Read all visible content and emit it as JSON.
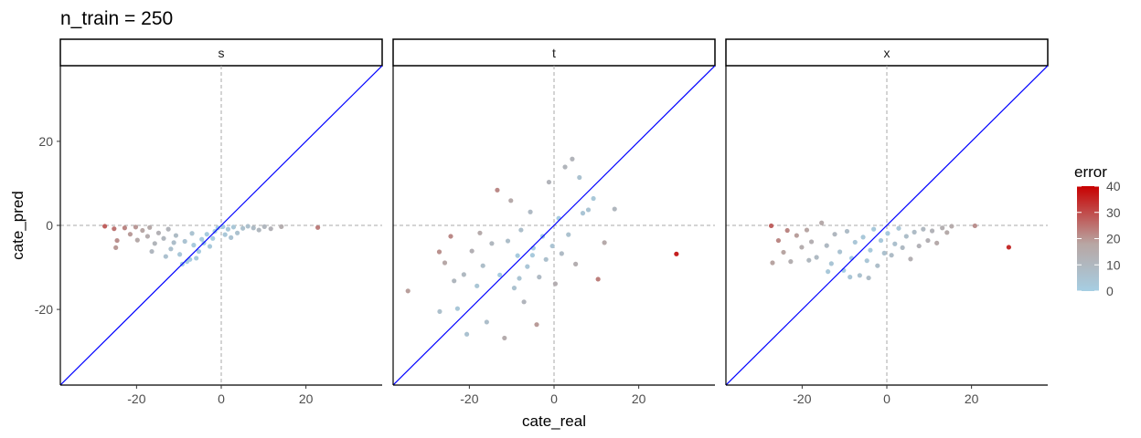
{
  "chart_data": {
    "type": "scatter",
    "title": "n_train = 250",
    "xlabel": "cate_real",
    "ylabel": "cate_pred",
    "xlim": [
      -38,
      38
    ],
    "ylim": [
      -38,
      38
    ],
    "x_ticks": [
      -20,
      0,
      20
    ],
    "y_ticks": [
      -20,
      0,
      20
    ],
    "reference_lines": {
      "identity_color": "#0000ff",
      "zero_lines": "dashed"
    },
    "legend": {
      "title": "error",
      "ticks": [
        0,
        10,
        20,
        30,
        40
      ],
      "range": [
        0,
        40
      ],
      "low_color": "#a6cee3",
      "mid_color": "#b8a6a3",
      "high_color": "#c80000",
      "placement": "right"
    },
    "panels": [
      {
        "label": "s",
        "points": [
          [
            -27.5,
            -0.2
          ],
          [
            -25.3,
            -0.8
          ],
          [
            -24.6,
            -3.6
          ],
          [
            -24.9,
            -5.3
          ],
          [
            -22.8,
            -0.6
          ],
          [
            -20.2,
            -0.4
          ],
          [
            -21.5,
            -2.1
          ],
          [
            -19.8,
            -3.5
          ],
          [
            -18.6,
            -1.2
          ],
          [
            -17.4,
            -2.6
          ],
          [
            -16.9,
            -0.5
          ],
          [
            -15.7,
            -4.3
          ],
          [
            -14.8,
            -1.8
          ],
          [
            -13.6,
            -3.1
          ],
          [
            -12.5,
            -0.9
          ],
          [
            -11.9,
            -5.6
          ],
          [
            -10.7,
            -2.4
          ],
          [
            -9.8,
            -6.9
          ],
          [
            -8.6,
            -3.8
          ],
          [
            -7.4,
            -8.1
          ],
          [
            -6.5,
            -4.7
          ],
          [
            -5.3,
            -6.2
          ],
          [
            -4.6,
            -3.3
          ],
          [
            -3.4,
            -2.1
          ],
          [
            -2.7,
            -5.0
          ],
          [
            -1.5,
            -1.4
          ],
          [
            -0.8,
            -0.6
          ],
          [
            0.4,
            -0.3
          ],
          [
            1.6,
            -0.9
          ],
          [
            2.9,
            -0.4
          ],
          [
            3.8,
            -1.8
          ],
          [
            5.1,
            -0.7
          ],
          [
            6.3,
            -0.2
          ],
          [
            7.6,
            -0.6
          ],
          [
            8.9,
            -1.1
          ],
          [
            10.2,
            -0.3
          ],
          [
            11.7,
            -0.8
          ],
          [
            14.2,
            -0.3
          ],
          [
            22.8,
            -0.5
          ],
          [
            -16.4,
            -6.2
          ],
          [
            -13.1,
            -7.4
          ],
          [
            -9.2,
            -9.2
          ],
          [
            -8.1,
            -8.6
          ],
          [
            -5.9,
            -7.8
          ],
          [
            -11.2,
            -4.1
          ],
          [
            -6.9,
            -1.9
          ],
          [
            -4.1,
            -4.2
          ],
          [
            -2.0,
            -3.1
          ],
          [
            0.9,
            -2.2
          ],
          [
            2.3,
            -2.9
          ]
        ]
      },
      {
        "label": "t",
        "points": [
          [
            -34.5,
            -15.6
          ],
          [
            -27.1,
            -6.3
          ],
          [
            -27.0,
            -20.5
          ],
          [
            -25.8,
            -8.9
          ],
          [
            -24.4,
            -2.6
          ],
          [
            -23.6,
            -13.2
          ],
          [
            -22.8,
            -19.8
          ],
          [
            -21.3,
            -11.7
          ],
          [
            -20.6,
            -25.9
          ],
          [
            -19.4,
            -6.1
          ],
          [
            -18.2,
            -14.4
          ],
          [
            -17.5,
            -1.8
          ],
          [
            -16.8,
            -9.6
          ],
          [
            -15.9,
            -23.0
          ],
          [
            -14.7,
            -4.3
          ],
          [
            -13.4,
            8.4
          ],
          [
            -12.8,
            -11.8
          ],
          [
            -11.7,
            -26.8
          ],
          [
            -10.9,
            -3.7
          ],
          [
            -10.2,
            5.9
          ],
          [
            -9.4,
            -14.9
          ],
          [
            -8.6,
            -7.2
          ],
          [
            -7.8,
            -1.1
          ],
          [
            -7.1,
            -18.2
          ],
          [
            -6.3,
            -9.8
          ],
          [
            -5.6,
            3.2
          ],
          [
            -4.9,
            -5.4
          ],
          [
            -4.1,
            -23.6
          ],
          [
            -3.5,
            -12.3
          ],
          [
            -2.7,
            -2.6
          ],
          [
            -1.9,
            -8.1
          ],
          [
            -1.2,
            10.3
          ],
          [
            -0.4,
            -4.9
          ],
          [
            0.3,
            -13.9
          ],
          [
            1.1,
            1.7
          ],
          [
            1.8,
            -6.7
          ],
          [
            2.6,
            13.9
          ],
          [
            3.4,
            -2.2
          ],
          [
            4.3,
            15.8
          ],
          [
            5.1,
            -9.2
          ],
          [
            6.0,
            11.4
          ],
          [
            6.8,
            2.9
          ],
          [
            8.1,
            3.7
          ],
          [
            9.3,
            6.4
          ],
          [
            10.4,
            -12.8
          ],
          [
            11.9,
            -4.1
          ],
          [
            14.3,
            3.9
          ],
          [
            -8.2,
            -12.6
          ],
          [
            -5.1,
            -7.1
          ],
          [
            28.9,
            -6.8
          ]
        ]
      },
      {
        "label": "x",
        "points": [
          [
            -27.3,
            -0.1
          ],
          [
            -27.0,
            -8.9
          ],
          [
            -25.6,
            -3.6
          ],
          [
            -24.4,
            -6.4
          ],
          [
            -23.5,
            -1.2
          ],
          [
            -22.7,
            -8.6
          ],
          [
            -21.3,
            -2.4
          ],
          [
            -20.1,
            -5.2
          ],
          [
            -18.9,
            -1.1
          ],
          [
            -17.8,
            -3.9
          ],
          [
            -16.6,
            -7.6
          ],
          [
            -15.4,
            0.6
          ],
          [
            -14.2,
            -4.8
          ],
          [
            -13.1,
            -9.1
          ],
          [
            -12.3,
            -2.1
          ],
          [
            -11.1,
            -6.3
          ],
          [
            -10.2,
            -10.7
          ],
          [
            -9.4,
            -1.4
          ],
          [
            -8.3,
            -7.8
          ],
          [
            -7.5,
            -4.0
          ],
          [
            -6.4,
            -11.9
          ],
          [
            -5.6,
            -2.8
          ],
          [
            -4.7,
            -8.4
          ],
          [
            -3.9,
            -5.9
          ],
          [
            -3.1,
            -0.9
          ],
          [
            -2.2,
            -9.6
          ],
          [
            -1.4,
            -3.6
          ],
          [
            -0.6,
            -6.6
          ],
          [
            0.2,
            -1.9
          ],
          [
            1.1,
            -7.1
          ],
          [
            1.9,
            -4.4
          ],
          [
            2.8,
            -0.7
          ],
          [
            3.7,
            -5.3
          ],
          [
            4.6,
            -2.6
          ],
          [
            5.6,
            -8.0
          ],
          [
            6.5,
            -1.6
          ],
          [
            7.6,
            -4.9
          ],
          [
            8.6,
            -0.9
          ],
          [
            9.7,
            -3.6
          ],
          [
            10.7,
            -1.3
          ],
          [
            11.8,
            -4.2
          ],
          [
            13.1,
            -0.6
          ],
          [
            14.2,
            -1.7
          ],
          [
            15.3,
            -0.2
          ],
          [
            20.8,
            -0.1
          ],
          [
            28.8,
            -5.2
          ],
          [
            -13.9,
            -11.0
          ],
          [
            -8.7,
            -12.3
          ],
          [
            -18.4,
            -8.3
          ],
          [
            -4.3,
            -12.5
          ]
        ]
      }
    ]
  }
}
